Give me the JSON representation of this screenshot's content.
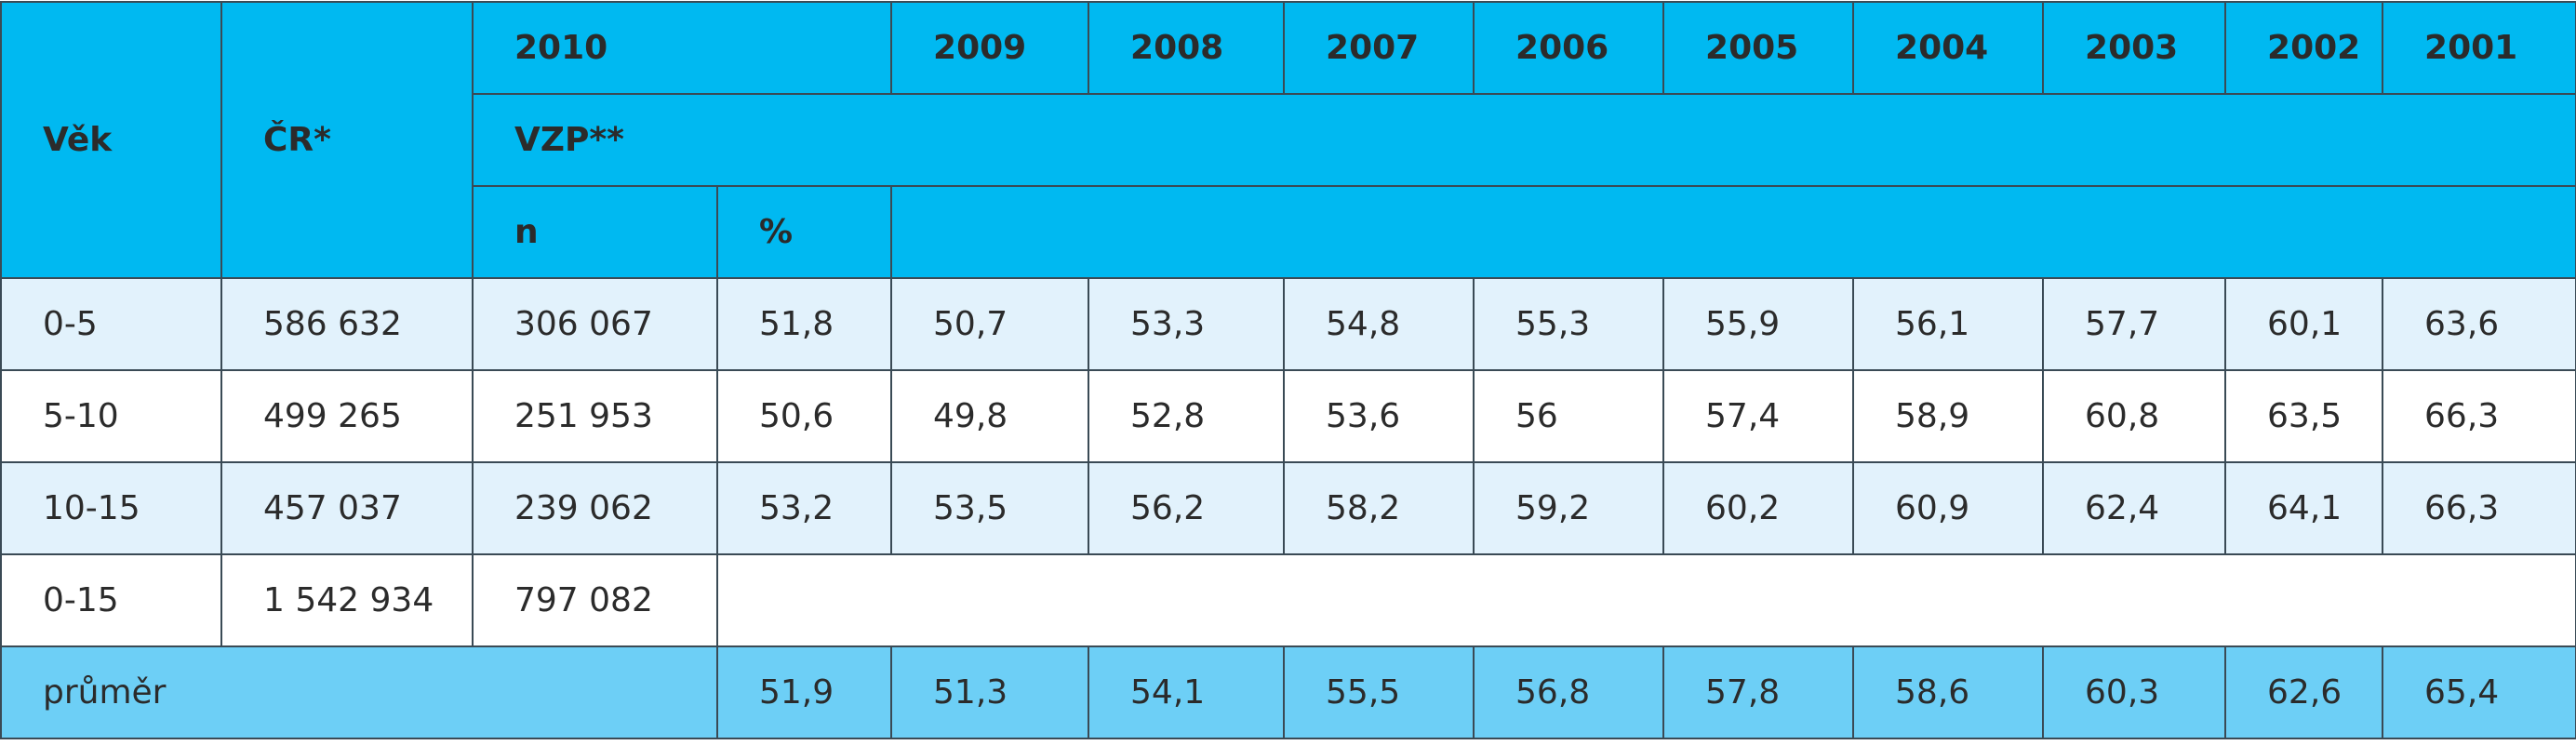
{
  "table": {
    "header": {
      "age": "Věk",
      "cr": "ČR*",
      "year_first": "2010",
      "years": [
        "2009",
        "2008",
        "2007",
        "2006",
        "2005",
        "2004",
        "2003",
        "2002",
        "2001"
      ],
      "vzp": "VZP**",
      "n": "n",
      "pct": "%"
    },
    "rows": [
      [
        "0-5",
        "586 632",
        "306 067",
        "51,8",
        "50,7",
        "53,3",
        "54,8",
        "55,3",
        "55,9",
        "56,1",
        "57,7",
        "60,1",
        "63,6"
      ],
      [
        "5-10",
        "499 265",
        "251 953",
        "50,6",
        "49,8",
        "52,8",
        "53,6",
        "56",
        "57,4",
        "58,9",
        "60,8",
        "63,5",
        "66,3"
      ],
      [
        "10-15",
        "457 037",
        "239 062",
        "53,2",
        "53,5",
        "56,2",
        "58,2",
        "59,2",
        "60,2",
        "60,9",
        "62,4",
        "64,1",
        "66,3"
      ],
      [
        "0-15",
        "1 542 934",
        "797 082"
      ]
    ],
    "average": {
      "label": "průměr",
      "values": [
        "51,9",
        "51,3",
        "54,1",
        "55,5",
        "56,8",
        "57,8",
        "58,6",
        "60,3",
        "62,6",
        "65,4"
      ]
    }
  }
}
